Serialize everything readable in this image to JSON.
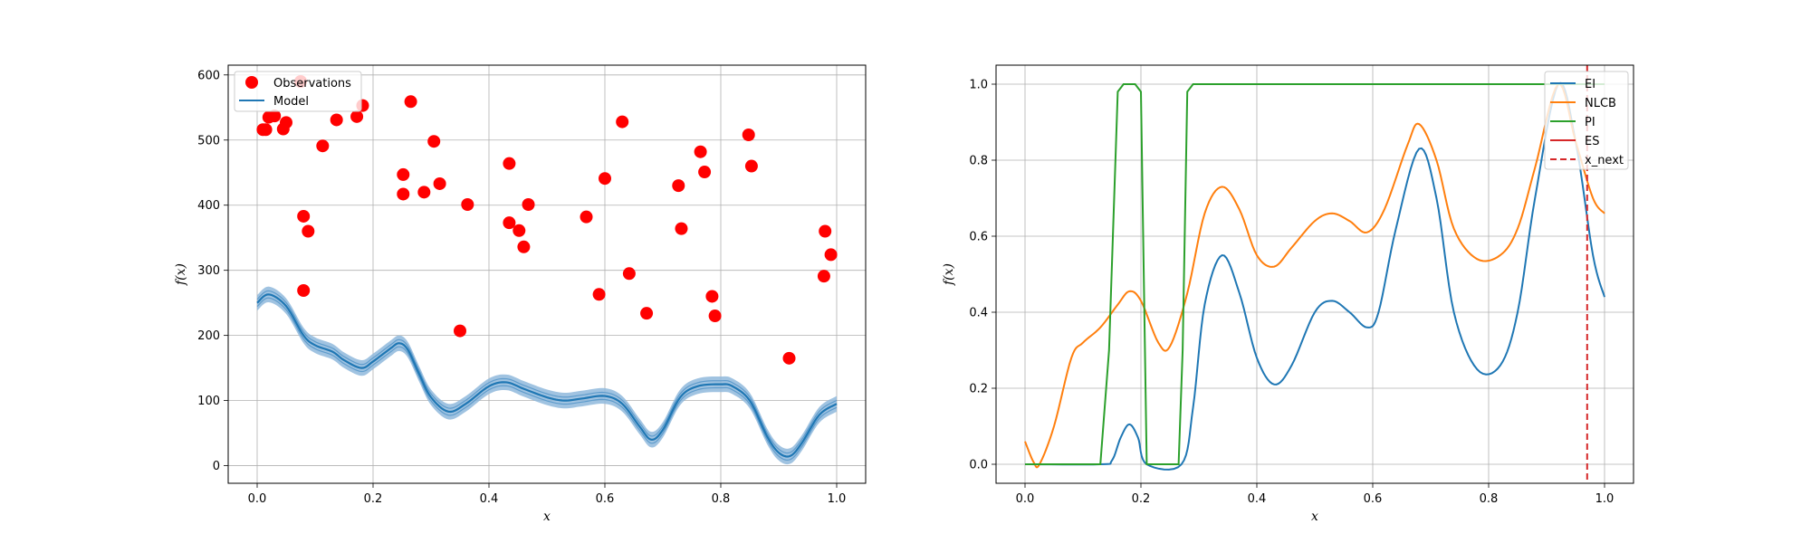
{
  "chart_data": [
    {
      "type": "scatter",
      "xlabel": "x",
      "ylabel": "f(x)",
      "xlim": [
        -0.05,
        1.05
      ],
      "ylim": [
        -27,
        615
      ],
      "xticks": [
        0.0,
        0.2,
        0.4,
        0.6,
        0.8,
        1.0
      ],
      "xtick_labels": [
        "0.0",
        "0.2",
        "0.4",
        "0.6",
        "0.8",
        "1.0"
      ],
      "yticks": [
        0,
        100,
        200,
        300,
        400,
        500,
        600
      ],
      "ytick_labels": [
        "0",
        "100",
        "200",
        "300",
        "400",
        "500",
        "600"
      ],
      "grid": true,
      "legend_position": "top-left",
      "legend": [
        "Observations",
        "Model"
      ],
      "colors": {
        "observations": "#ff0000",
        "model": "#1f77b4",
        "band": "#8fb8dc"
      },
      "observations": [
        [
          0.01,
          516
        ],
        [
          0.015,
          516
        ],
        [
          0.02,
          535
        ],
        [
          0.03,
          537
        ],
        [
          0.045,
          517
        ],
        [
          0.05,
          527
        ],
        [
          0.075,
          590
        ],
        [
          0.08,
          383
        ],
        [
          0.08,
          269
        ],
        [
          0.088,
          360
        ],
        [
          0.113,
          491
        ],
        [
          0.137,
          531
        ],
        [
          0.172,
          536
        ],
        [
          0.182,
          553
        ],
        [
          0.252,
          447
        ],
        [
          0.252,
          417
        ],
        [
          0.265,
          559
        ],
        [
          0.288,
          420
        ],
        [
          0.305,
          498
        ],
        [
          0.315,
          433
        ],
        [
          0.35,
          207
        ],
        [
          0.363,
          401
        ],
        [
          0.435,
          464
        ],
        [
          0.435,
          373
        ],
        [
          0.452,
          361
        ],
        [
          0.46,
          336
        ],
        [
          0.468,
          401
        ],
        [
          0.568,
          382
        ],
        [
          0.59,
          263
        ],
        [
          0.6,
          441
        ],
        [
          0.63,
          528
        ],
        [
          0.642,
          295
        ],
        [
          0.672,
          234
        ],
        [
          0.727,
          430
        ],
        [
          0.732,
          364
        ],
        [
          0.765,
          482
        ],
        [
          0.772,
          451
        ],
        [
          0.785,
          260
        ],
        [
          0.79,
          230
        ],
        [
          0.848,
          508
        ],
        [
          0.853,
          460
        ],
        [
          0.918,
          165
        ],
        [
          0.978,
          291
        ],
        [
          0.98,
          360
        ],
        [
          0.99,
          324
        ]
      ],
      "model": {
        "x": [
          0.0,
          0.02,
          0.05,
          0.08,
          0.1,
          0.13,
          0.15,
          0.18,
          0.2,
          0.23,
          0.245,
          0.26,
          0.28,
          0.3,
          0.33,
          0.36,
          0.4,
          0.43,
          0.46,
          0.5,
          0.53,
          0.56,
          0.6,
          0.63,
          0.66,
          0.68,
          0.7,
          0.73,
          0.76,
          0.8,
          0.82,
          0.85,
          0.88,
          0.9,
          0.92,
          0.94,
          0.97,
          1.0
        ],
        "y": [
          250,
          263,
          245,
          200,
          185,
          175,
          162,
          150,
          160,
          180,
          188,
          178,
          140,
          105,
          83,
          95,
          122,
          128,
          118,
          105,
          100,
          103,
          107,
          95,
          60,
          40,
          55,
          105,
          122,
          125,
          122,
          100,
          45,
          20,
          15,
          35,
          78,
          95
        ]
      },
      "band_half_width": 12
    },
    {
      "type": "line",
      "xlabel": "x",
      "ylabel": "f(x)",
      "xlim": [
        -0.05,
        1.05
      ],
      "ylim": [
        -0.05,
        1.05
      ],
      "xticks": [
        0.0,
        0.2,
        0.4,
        0.6,
        0.8,
        1.0
      ],
      "xtick_labels": [
        "0.0",
        "0.2",
        "0.4",
        "0.6",
        "0.8",
        "1.0"
      ],
      "yticks": [
        0.0,
        0.2,
        0.4,
        0.6,
        0.8,
        1.0
      ],
      "ytick_labels": [
        "0.0",
        "0.2",
        "0.4",
        "0.6",
        "0.8",
        "1.0"
      ],
      "grid": true,
      "legend_position": "top-right",
      "legend": [
        "EI",
        "NLCB",
        "PI",
        "ES",
        "x_next"
      ],
      "x_next": 0.97,
      "series": [
        {
          "name": "EI",
          "color": "#1f77b4",
          "x": [
            0.0,
            0.13,
            0.15,
            0.165,
            0.18,
            0.195,
            0.21,
            0.27,
            0.29,
            0.31,
            0.34,
            0.37,
            0.4,
            0.43,
            0.46,
            0.5,
            0.53,
            0.56,
            0.59,
            0.61,
            0.64,
            0.68,
            0.71,
            0.74,
            0.78,
            0.82,
            0.85,
            0.88,
            0.92,
            0.95,
            0.98,
            1.0
          ],
          "y": [
            0.0,
            0.0,
            0.01,
            0.07,
            0.105,
            0.07,
            0.0,
            0.0,
            0.15,
            0.42,
            0.55,
            0.45,
            0.28,
            0.21,
            0.26,
            0.4,
            0.43,
            0.4,
            0.36,
            0.4,
            0.62,
            0.83,
            0.7,
            0.4,
            0.25,
            0.26,
            0.4,
            0.7,
            1.0,
            0.85,
            0.55,
            0.44
          ]
        },
        {
          "name": "NLCB",
          "color": "#ff7f0e",
          "x": [
            0.0,
            0.015,
            0.025,
            0.05,
            0.08,
            0.1,
            0.13,
            0.16,
            0.18,
            0.2,
            0.23,
            0.25,
            0.28,
            0.31,
            0.34,
            0.37,
            0.4,
            0.43,
            0.46,
            0.5,
            0.53,
            0.56,
            0.59,
            0.62,
            0.66,
            0.68,
            0.71,
            0.74,
            0.78,
            0.82,
            0.85,
            0.88,
            0.92,
            0.95,
            0.98,
            1.0
          ],
          "y": [
            0.06,
            0.005,
            0.0,
            0.1,
            0.28,
            0.32,
            0.36,
            0.42,
            0.455,
            0.43,
            0.32,
            0.31,
            0.45,
            0.66,
            0.73,
            0.67,
            0.55,
            0.52,
            0.57,
            0.64,
            0.66,
            0.64,
            0.61,
            0.67,
            0.84,
            0.895,
            0.8,
            0.62,
            0.54,
            0.55,
            0.62,
            0.78,
            1.0,
            0.85,
            0.7,
            0.66
          ]
        },
        {
          "name": "PI",
          "color": "#2ca02c",
          "x": [
            0.0,
            0.13,
            0.145,
            0.16,
            0.17,
            0.19,
            0.2,
            0.21,
            0.265,
            0.272,
            0.28,
            0.29,
            1.0
          ],
          "y": [
            0.0,
            0.0,
            0.3,
            0.98,
            1.0,
            1.0,
            0.98,
            0.0,
            0.0,
            0.3,
            0.98,
            1.0,
            1.0
          ]
        },
        {
          "name": "ES",
          "color": "#d62728",
          "x": [],
          "y": []
        }
      ]
    }
  ]
}
